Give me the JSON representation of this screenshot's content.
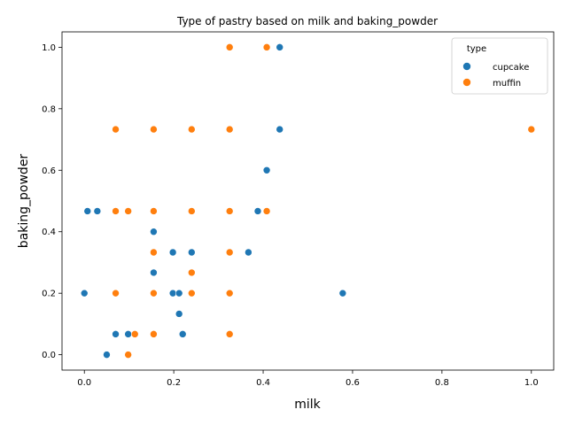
{
  "chart_data": {
    "type": "scatter",
    "title": "Type of pastry based on milk and baking_powder",
    "xlabel": "milk",
    "ylabel": "baking_powder",
    "xlim": [
      -0.05,
      1.05
    ],
    "ylim": [
      -0.05,
      1.05
    ],
    "xticks": [
      "0.0",
      "0.2",
      "0.4",
      "0.6",
      "0.8",
      "1.0"
    ],
    "yticks": [
      "0.0",
      "0.2",
      "0.4",
      "0.6",
      "0.8",
      "1.0"
    ],
    "grid": false,
    "legend": {
      "title": "type",
      "placement": "top-right"
    },
    "series": [
      {
        "name": "cupcake",
        "color": "#1f77b4",
        "points": [
          [
            0.437,
            1.0
          ],
          [
            0.437,
            0.733
          ],
          [
            0.408,
            0.6
          ],
          [
            0.007,
            0.467
          ],
          [
            0.029,
            0.467
          ],
          [
            0.388,
            0.467
          ],
          [
            0.155,
            0.4
          ],
          [
            0.198,
            0.333
          ],
          [
            0.24,
            0.333
          ],
          [
            0.367,
            0.333
          ],
          [
            0.155,
            0.267
          ],
          [
            0.0,
            0.2
          ],
          [
            0.198,
            0.2
          ],
          [
            0.212,
            0.2
          ],
          [
            0.578,
            0.2
          ],
          [
            0.212,
            0.133
          ],
          [
            0.07,
            0.067
          ],
          [
            0.098,
            0.067
          ],
          [
            0.22,
            0.067
          ],
          [
            0.05,
            0.0
          ]
        ]
      },
      {
        "name": "muffin",
        "color": "#ff7f0e",
        "points": [
          [
            0.325,
            1.0
          ],
          [
            0.408,
            1.0
          ],
          [
            0.07,
            0.733
          ],
          [
            0.155,
            0.733
          ],
          [
            0.24,
            0.733
          ],
          [
            0.325,
            0.733
          ],
          [
            1.0,
            0.733
          ],
          [
            0.07,
            0.467
          ],
          [
            0.098,
            0.467
          ],
          [
            0.155,
            0.467
          ],
          [
            0.24,
            0.467
          ],
          [
            0.325,
            0.467
          ],
          [
            0.408,
            0.467
          ],
          [
            0.155,
            0.333
          ],
          [
            0.325,
            0.333
          ],
          [
            0.24,
            0.267
          ],
          [
            0.07,
            0.2
          ],
          [
            0.155,
            0.2
          ],
          [
            0.24,
            0.2
          ],
          [
            0.325,
            0.2
          ],
          [
            0.113,
            0.067
          ],
          [
            0.155,
            0.067
          ],
          [
            0.325,
            0.067
          ],
          [
            0.098,
            0.0
          ]
        ]
      }
    ]
  }
}
